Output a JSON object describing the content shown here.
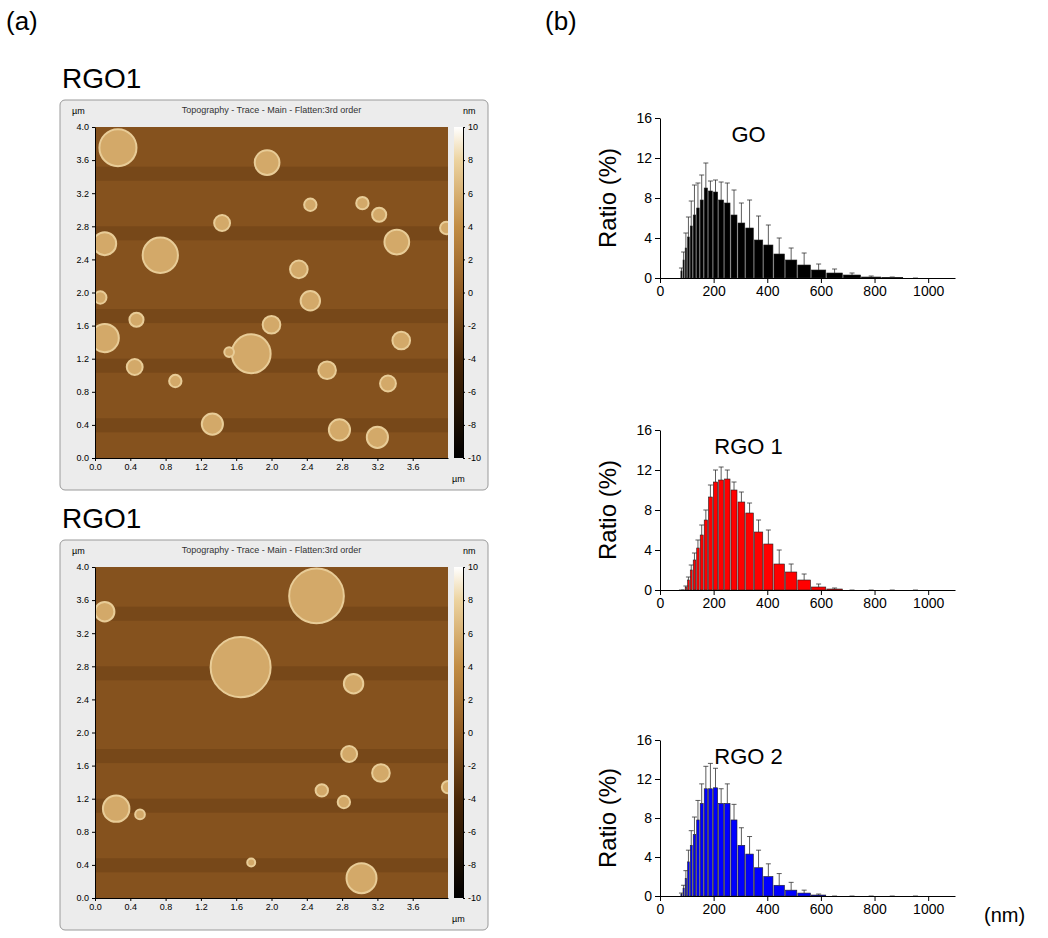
{
  "panel_labels": [
    "(a)",
    "(b)"
  ],
  "chart_data": [
    {
      "type": "bubble",
      "title": "RGO1",
      "subtitle": "Topography - Trace - Main - Flatten:3rd order",
      "x_label": "µm",
      "y_label": "µm",
      "xlim": [
        0,
        4
      ],
      "ylim": [
        0,
        4
      ],
      "xticks": [
        {
          "value": 0,
          "label": "0.0"
        },
        0.4,
        0.8,
        1.2,
        1.6,
        {
          "value": 2,
          "label": "2.0"
        },
        2.4,
        2.8,
        3.2,
        3.6
      ],
      "yticks": [
        {
          "value": 0,
          "label": "0.0"
        },
        0.4,
        0.8,
        1.2,
        1.6,
        {
          "value": 2,
          "label": "2.0"
        },
        2.4,
        2.8,
        3.2,
        3.6,
        {
          "value": 4,
          "label": "4.0"
        }
      ],
      "x": [
        0.26,
        1.95,
        2.44,
        3.03,
        3.22,
        1.44,
        3.42,
        3.98,
        0.11,
        0.74,
        2.31,
        2.44,
        0.06,
        0.47,
        2.0,
        3.47,
        0.11,
        1.77,
        1.52,
        0.45,
        2.63,
        0.91,
        3.32,
        1.33,
        2.77,
        3.2
      ],
      "values": [
        3.75,
        3.57,
        3.06,
        3.08,
        2.94,
        2.84,
        2.61,
        2.78,
        2.59,
        2.45,
        2.28,
        1.9,
        1.94,
        1.67,
        1.61,
        1.42,
        1.45,
        1.26,
        1.28,
        1.1,
        1.06,
        0.93,
        0.9,
        0.41,
        0.34,
        0.25
      ],
      "sizes": [
        0.42,
        0.28,
        0.14,
        0.14,
        0.16,
        0.18,
        0.28,
        0.14,
        0.26,
        0.4,
        0.2,
        0.22,
        0.14,
        0.16,
        0.2,
        0.2,
        0.32,
        0.44,
        0.11,
        0.18,
        0.2,
        0.14,
        0.18,
        0.24,
        0.24,
        0.24
      ],
      "colorbar": {
        "label": "nm",
        "range": [
          -10,
          10
        ],
        "ticks": [
          10,
          8,
          6,
          4,
          2,
          0,
          -2,
          -4,
          -6,
          -8,
          -10
        ]
      }
    },
    {
      "type": "bubble",
      "title": "RGO1",
      "subtitle": "Topography - Trace - Main - Flatten:3rd order",
      "x_label": "µm",
      "y_label": "µm",
      "xlim": [
        0,
        4
      ],
      "ylim": [
        0,
        4
      ],
      "xticks": [
        {
          "value": 0,
          "label": "0.0"
        },
        0.4,
        0.8,
        1.2,
        1.6,
        {
          "value": 2,
          "label": "2.0"
        },
        2.4,
        2.8,
        3.2,
        3.6
      ],
      "yticks": [
        {
          "value": 0,
          "label": "0.0"
        },
        0.4,
        0.8,
        1.2,
        1.6,
        {
          "value": 2,
          "label": "2.0"
        },
        2.4,
        2.8,
        3.2,
        3.6,
        {
          "value": 4,
          "label": "4.0"
        }
      ],
      "x": [
        2.51,
        0.11,
        1.65,
        2.93,
        2.88,
        3.24,
        4.0,
        2.57,
        2.82,
        0.24,
        0.51,
        1.77,
        3.02
      ],
      "values": [
        3.65,
        3.46,
        2.79,
        2.59,
        1.74,
        1.51,
        1.34,
        1.3,
        1.16,
        1.08,
        1.01,
        0.43,
        0.24
      ],
      "sizes": [
        0.62,
        0.22,
        0.68,
        0.22,
        0.18,
        0.2,
        0.14,
        0.14,
        0.14,
        0.3,
        0.11,
        0.09,
        0.34
      ],
      "colorbar": {
        "label": "nm",
        "range": [
          -10,
          10
        ],
        "ticks": [
          10,
          8,
          6,
          4,
          2,
          0,
          -2,
          -4,
          -6,
          -8,
          -10
        ]
      }
    },
    {
      "type": "histogram",
      "title": "GO",
      "y_label": "Ratio (%)",
      "color": "#000000",
      "xlim": [
        0,
        1100
      ],
      "xticks": [
        0,
        200,
        400,
        600,
        800,
        1000
      ],
      "ylim": [
        0,
        16
      ],
      "yticks": [
        0,
        4,
        8,
        12,
        16
      ],
      "bins": [
        76,
        84,
        92,
        101,
        111,
        122,
        135,
        148,
        163,
        179,
        197,
        217,
        239,
        263,
        289,
        318,
        350,
        385,
        423,
        466,
        512,
        563,
        620,
        682,
        750,
        825,
        907,
        998
      ],
      "values": [
        0.7,
        1.8,
        3.0,
        4.1,
        5.2,
        6.3,
        7.0,
        7.8,
        9.0,
        8.7,
        8.6,
        7.8,
        7.5,
        6.3,
        5.5,
        5.0,
        3.8,
        3.3,
        2.4,
        1.8,
        1.3,
        0.8,
        0.5,
        0.3,
        0.1,
        0.05,
        0
      ],
      "errors": [
        0.3,
        0.8,
        1.5,
        2,
        2.5,
        3,
        2.5,
        2.5,
        2.5,
        1,
        1.2,
        1.8,
        2,
        2.5,
        2,
        2.8,
        2.4,
        2,
        1.6,
        1.2,
        1.2,
        0.6,
        0.4,
        0.2,
        0.1,
        0.05,
        0
      ]
    },
    {
      "type": "histogram",
      "title": "RGO 1",
      "y_label": "Ratio (%)",
      "color": "#ff0000",
      "xlim": [
        0,
        1100
      ],
      "xticks": [
        0,
        200,
        400,
        600,
        800,
        1000
      ],
      "ylim": [
        0,
        16
      ],
      "yticks": [
        0,
        4,
        8,
        12,
        16
      ],
      "bins": [
        76,
        84,
        92,
        101,
        111,
        122,
        135,
        148,
        163,
        179,
        197,
        217,
        239,
        263,
        289,
        318,
        350,
        385,
        423,
        466,
        512,
        563,
        620,
        682,
        750,
        825,
        907,
        998
      ],
      "values": [
        0,
        0,
        0.3,
        1.0,
        2.0,
        3.0,
        4.2,
        5.5,
        7.0,
        9.3,
        10.8,
        11.0,
        11.1,
        10.0,
        8.8,
        7.7,
        5.8,
        4.6,
        2.6,
        1.8,
        1.0,
        0.3,
        0.1,
        0,
        0,
        0,
        0
      ],
      "errors": [
        0,
        0,
        0.1,
        0.3,
        0.5,
        0.7,
        0.8,
        1,
        1,
        1.2,
        1.2,
        1.3,
        0.9,
        0.8,
        1,
        1,
        1.2,
        1.4,
        1.4,
        0.8,
        0.6,
        0.3,
        0.1,
        0,
        0,
        0,
        0
      ]
    },
    {
      "type": "histogram",
      "title": "RGO 2",
      "y_label": "Ratio (%)",
      "x_label": "(nm)",
      "color": "#0000ff",
      "xlim": [
        0,
        1100
      ],
      "xticks": [
        0,
        200,
        400,
        600,
        800,
        1000
      ],
      "ylim": [
        0,
        16
      ],
      "yticks": [
        0,
        4,
        8,
        12,
        16
      ],
      "bins": [
        76,
        84,
        92,
        101,
        111,
        122,
        135,
        148,
        163,
        179,
        197,
        217,
        239,
        263,
        289,
        318,
        350,
        385,
        423,
        466,
        512,
        563,
        620,
        682,
        750,
        825,
        907,
        998
      ],
      "values": [
        0.2,
        0.8,
        1.8,
        3.5,
        5.2,
        6.3,
        7.8,
        9.5,
        11.0,
        11.0,
        11.1,
        9.5,
        9.5,
        7.8,
        5.2,
        4.3,
        2.9,
        2.0,
        1.1,
        0.6,
        0.3,
        0.1,
        0,
        0,
        0,
        0,
        0
      ],
      "errors": [
        0.1,
        0.3,
        0.8,
        1.2,
        1.5,
        1.8,
        2,
        2,
        2.3,
        2.6,
        2,
        1.5,
        2,
        1.6,
        1.8,
        1.8,
        1.8,
        1.3,
        1.2,
        0.8,
        0.3,
        0.1,
        0,
        0,
        0,
        0,
        0
      ]
    }
  ]
}
